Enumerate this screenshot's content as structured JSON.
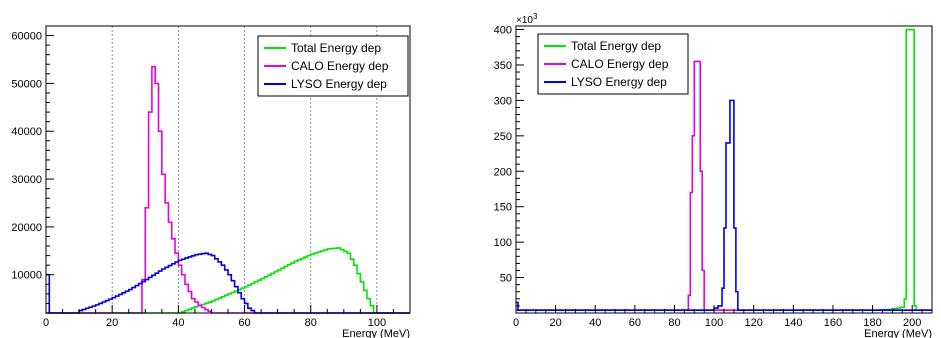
{
  "chart_data": [
    {
      "type": "line",
      "xlabel": "Energy (MeV)",
      "xlim": [
        0,
        110
      ],
      "ylim": [
        2000,
        62000
      ],
      "x_ticks": [
        0,
        20,
        40,
        60,
        80,
        100
      ],
      "y_ticks": [
        10000,
        20000,
        30000,
        40000,
        50000,
        60000
      ],
      "y_tick_labels": [
        "10000",
        "20000",
        "30000",
        "40000",
        "50000",
        "60000"
      ],
      "vertical_grid": [
        20,
        40,
        60,
        80,
        100
      ],
      "legend_position": "top-right",
      "series": [
        {
          "name": "Total Energy dep",
          "color": "#00e600",
          "points": [
            [
              0,
              2000
            ],
            [
              40,
              2000
            ],
            [
              45,
              3300
            ],
            [
              50,
              4500
            ],
            [
              55,
              6000
            ],
            [
              60,
              7500
            ],
            [
              65,
              9200
            ],
            [
              70,
              11000
            ],
            [
              75,
              12800
            ],
            [
              80,
              14300
            ],
            [
              85,
              15400
            ],
            [
              88,
              15600
            ],
            [
              91,
              14500
            ],
            [
              93,
              12000
            ],
            [
              95,
              8500
            ],
            [
              97,
              5000
            ],
            [
              99,
              2000
            ],
            [
              110,
              2000
            ]
          ]
        },
        {
          "name": "CALO Energy dep",
          "color": "#e600e6",
          "points": [
            [
              0,
              2000
            ],
            [
              28,
              2000
            ],
            [
              29,
              9000
            ],
            [
              30,
              24000
            ],
            [
              31,
              44000
            ],
            [
              32,
              53500
            ],
            [
              33,
              50000
            ],
            [
              34,
              40000
            ],
            [
              35,
              31000
            ],
            [
              36,
              25000
            ],
            [
              37,
              21000
            ],
            [
              38,
              17500
            ],
            [
              39,
              14500
            ],
            [
              40,
              12000
            ],
            [
              41,
              10000
            ],
            [
              42,
              8000
            ],
            [
              43,
              6500
            ],
            [
              44,
              5000
            ],
            [
              46,
              3600
            ],
            [
              48,
              2700
            ],
            [
              50,
              2000
            ],
            [
              110,
              2000
            ]
          ]
        },
        {
          "name": "LYSO Energy dep",
          "color": "#0000e6",
          "points": [
            [
              0,
              10000
            ],
            [
              1,
              2000
            ],
            [
              9,
              2000
            ],
            [
              10,
              2500
            ],
            [
              15,
              3700
            ],
            [
              20,
              5200
            ],
            [
              25,
              6900
            ],
            [
              30,
              9000
            ],
            [
              35,
              11200
            ],
            [
              40,
              13000
            ],
            [
              45,
              14200
            ],
            [
              48,
              14500
            ],
            [
              50,
              14000
            ],
            [
              53,
              12000
            ],
            [
              55,
              10000
            ],
            [
              57,
              7500
            ],
            [
              59,
              5000
            ],
            [
              61,
              3000
            ],
            [
              63,
              2000
            ],
            [
              110,
              2000
            ]
          ]
        }
      ]
    },
    {
      "type": "line",
      "xlabel": "Energy (MeV)",
      "xlim": [
        0,
        210
      ],
      "ylim": [
        0,
        405
      ],
      "y_exponent": "×10",
      "y_exponent_power": "3",
      "x_ticks": [
        0,
        20,
        40,
        60,
        80,
        100,
        120,
        140,
        160,
        180,
        200
      ],
      "y_ticks": [
        50,
        100,
        150,
        200,
        250,
        300,
        350,
        400
      ],
      "y_tick_labels": [
        "50",
        "100",
        "150",
        "200",
        "250",
        "300",
        "350",
        "400"
      ],
      "legend_position": "top-left",
      "series": [
        {
          "name": "Total Energy dep",
          "color": "#00e600",
          "points": [
            [
              0,
              4
            ],
            [
              180,
              4
            ],
            [
              188,
              5
            ],
            [
              194,
              8
            ],
            [
              196,
              20
            ],
            [
              197,
              400
            ],
            [
              200,
              400
            ],
            [
              201,
              10
            ],
            [
              202,
              4
            ],
            [
              210,
              4
            ]
          ]
        },
        {
          "name": "CALO Energy dep",
          "color": "#e600e6",
          "points": [
            [
              0,
              4
            ],
            [
              86,
              4
            ],
            [
              87,
              25
            ],
            [
              88,
              170
            ],
            [
              89,
              250
            ],
            [
              90,
              355
            ],
            [
              92,
              355
            ],
            [
              93,
              200
            ],
            [
              94,
              60
            ],
            [
              95,
              4
            ],
            [
              210,
              4
            ]
          ]
        },
        {
          "name": "LYSO Energy dep",
          "color": "#0000e6",
          "points": [
            [
              0,
              15
            ],
            [
              1,
              4
            ],
            [
              98,
              4
            ],
            [
              102,
              10
            ],
            [
              104,
              35
            ],
            [
              105,
              120
            ],
            [
              106,
              240
            ],
            [
              108,
              300
            ],
            [
              110,
              120
            ],
            [
              111,
              30
            ],
            [
              112,
              4
            ],
            [
              210,
              4
            ]
          ]
        }
      ]
    }
  ]
}
